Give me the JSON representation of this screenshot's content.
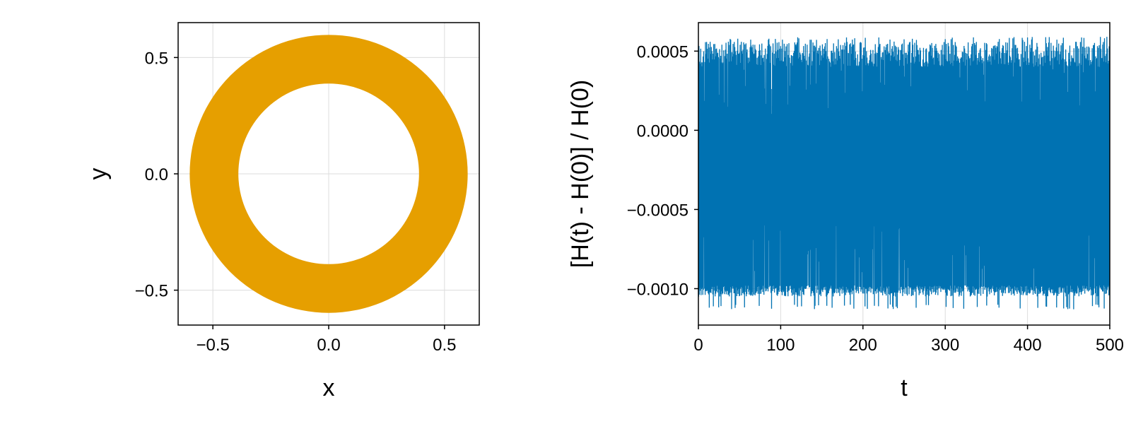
{
  "colors": {
    "orbit": "#E69F00",
    "energy_error": "#0072B2",
    "grid": "#dcdcdc",
    "frame": "#000000"
  },
  "chart_data": [
    {
      "type": "scatter",
      "description_of_marks": "dense orbit trajectory forming an annulus",
      "xlabel": "x",
      "ylabel": "y",
      "xlim": [
        -0.65,
        0.65
      ],
      "ylim": [
        -0.65,
        0.65
      ],
      "xticks": [
        -0.5,
        0.0,
        0.5
      ],
      "yticks": [
        -0.5,
        0.0,
        0.5
      ],
      "xtick_labels": [
        "−0.5",
        "0.0",
        "0.5"
      ],
      "ytick_labels": [
        "−0.5",
        "0.0",
        "0.5"
      ],
      "grid": true,
      "series": [
        {
          "inner_radius": 0.39,
          "outer_radius": 0.6,
          "center": [
            0.0,
            0.0
          ]
        }
      ]
    },
    {
      "type": "line",
      "xlabel": "t",
      "ylabel": "[H(t) - H(0)] / H(0)",
      "xlim": [
        0,
        500
      ],
      "ylim": [
        -0.00123,
        0.00068
      ],
      "xticks": [
        0,
        100,
        200,
        300,
        400,
        500
      ],
      "yticks": [
        0.0005,
        0.0,
        -0.0005,
        -0.001
      ],
      "xtick_labels": [
        "0",
        "100",
        "200",
        "300",
        "400",
        "500"
      ],
      "ytick_labels": [
        "0.0005",
        "0.0000",
        "−0.0005",
        "−0.0010"
      ],
      "grid": true,
      "series": [
        {
          "min": -0.00113,
          "max": 0.00059,
          "typical_upper": 0.00056,
          "typical_lower": -0.00102
        }
      ]
    }
  ]
}
